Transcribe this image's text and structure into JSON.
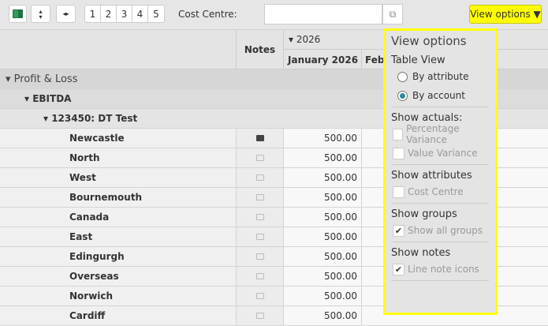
{
  "toolbar": {
    "pages": [
      "1",
      "2",
      "3",
      "4",
      "5"
    ],
    "cost_centre_label": "Cost Centre:",
    "cost_centre_value": "",
    "view_options_label": "View options ▼",
    "icons": [
      "excel-icon",
      "expand-vertical-icon",
      "expand-horizontal-icon",
      "external-link-icon"
    ]
  },
  "header": {
    "notes": "Notes",
    "year": "▾ 2026",
    "month1": "January 2026",
    "month2": "Feb"
  },
  "groups": [
    {
      "label": "▾ Profit & Loss"
    },
    {
      "label": "▾ EBITDA"
    },
    {
      "label": "▾ 123450: DT Test"
    }
  ],
  "rows": [
    {
      "label": "Newcastle",
      "value": "500.00",
      "note": "filled"
    },
    {
      "label": "North",
      "value": "500.00",
      "note": "empty"
    },
    {
      "label": "West",
      "value": "500.00",
      "note": "empty"
    },
    {
      "label": "Bournemouth",
      "value": "500.00",
      "note": "empty"
    },
    {
      "label": "Canada",
      "value": "500.00",
      "note": "empty"
    },
    {
      "label": "East",
      "value": "500.00",
      "note": "empty"
    },
    {
      "label": "Edingurgh",
      "value": "500.00",
      "note": "empty"
    },
    {
      "label": "Overseas",
      "value": "500.00",
      "note": "empty"
    },
    {
      "label": "Norwich",
      "value": "500.00",
      "note": "empty"
    },
    {
      "label": "Cardiff",
      "value": "500.00",
      "note": "empty"
    }
  ],
  "panel": {
    "title": "View options",
    "table_view": "Table View",
    "by_attribute": "By attribute",
    "by_account": "By account",
    "selected": "By account",
    "show_actuals": "Show actuals:",
    "percentage_variance": "Percentage Variance",
    "value_variance": "Value Variance",
    "show_attributes": "Show attributes",
    "cost_centre": "Cost Centre",
    "show_groups": "Show groups",
    "show_all_groups": "Show all groups",
    "show_all_groups_checked": true,
    "show_notes": "Show notes",
    "line_note_icons": "Line note icons",
    "line_note_icons_checked": true
  },
  "colors": {
    "highlight": "#ffff00",
    "radio_accent": "#2e8a96",
    "excel": "#1e7145"
  }
}
